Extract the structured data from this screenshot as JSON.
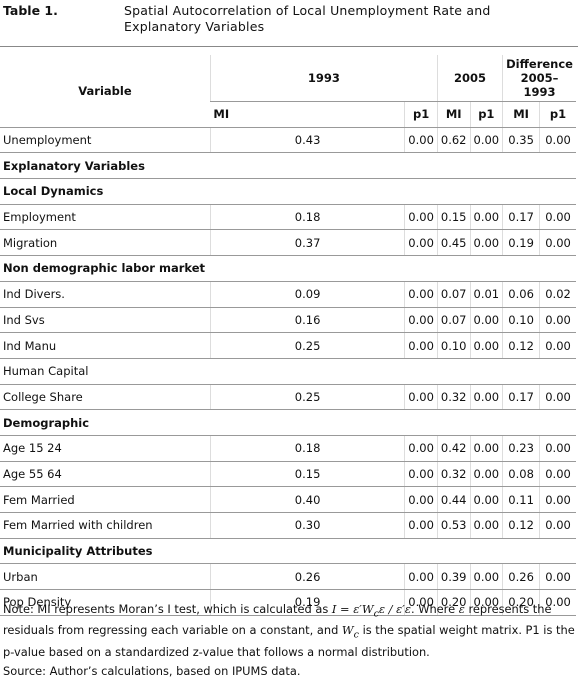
{
  "header": {
    "label": "Table 1.",
    "title": "Spatial Autocorrelation of Local Unemployment Rate and Explanatory Variables"
  },
  "table": {
    "columns": {
      "variable": "Variable",
      "groups": [
        "1993",
        "2005",
        "Difference 2005–1993"
      ],
      "sub": [
        "MI",
        "p1",
        "MI",
        "p1",
        "MI",
        "p1"
      ]
    },
    "rows": [
      {
        "label": "Unemployment",
        "values": [
          "0.43",
          "0.00",
          "0.62",
          "0.00",
          "0.35",
          "0.00"
        ]
      },
      {
        "section": "Explanatory Variables"
      },
      {
        "section": "Local Dynamics"
      },
      {
        "label": "Employment",
        "values": [
          "0.18",
          "0.00",
          "0.15",
          "0.00",
          "0.17",
          "0.00"
        ]
      },
      {
        "label": "Migration",
        "values": [
          "0.37",
          "0.00",
          "0.45",
          "0.00",
          "0.19",
          "0.00"
        ]
      },
      {
        "section": "Non demographic labor market"
      },
      {
        "label": "Ind Divers.",
        "values": [
          "0.09",
          "0.00",
          "0.07",
          "0.01",
          "0.06",
          "0.02"
        ]
      },
      {
        "label": "Ind Svs",
        "values": [
          "0.16",
          "0.00",
          "0.07",
          "0.00",
          "0.10",
          "0.00"
        ]
      },
      {
        "label": "Ind Manu",
        "values": [
          "0.25",
          "0.00",
          "0.10",
          "0.00",
          "0.12",
          "0.00"
        ]
      },
      {
        "label": "Human Capital"
      },
      {
        "label": "College Share",
        "values": [
          "0.25",
          "0.00",
          "0.32",
          "0.00",
          "0.17",
          "0.00"
        ]
      },
      {
        "section": "Demographic"
      },
      {
        "label": "Age 15 24",
        "values": [
          "0.18",
          "0.00",
          "0.42",
          "0.00",
          "0.23",
          "0.00"
        ]
      },
      {
        "label": "Age 55 64",
        "values": [
          "0.15",
          "0.00",
          "0.32",
          "0.00",
          "0.08",
          "0.00"
        ]
      },
      {
        "label": "Fem Married",
        "values": [
          "0.40",
          "0.00",
          "0.44",
          "0.00",
          "0.11",
          "0.00"
        ]
      },
      {
        "label": "Fem Married with children",
        "values": [
          "0.30",
          "0.00",
          "0.53",
          "0.00",
          "0.12",
          "0.00"
        ]
      },
      {
        "section": "Municipality Attributes"
      },
      {
        "label": "Urban",
        "values": [
          "0.26",
          "0.00",
          "0.39",
          "0.00",
          "0.26",
          "0.00"
        ]
      },
      {
        "label": "Pop Density",
        "values": [
          "0.19",
          "0.00",
          "0.20",
          "0.00",
          "0.20",
          "0.00"
        ]
      }
    ]
  },
  "note": [
    "Note: MI represents Moran’s I test, which is calculated as ",
    "I = ε′W",
    "c",
    "ε / ε′ε",
    ". Where ",
    "ε",
    " represents the residuals from regressing each variable on a constant, and ",
    "W",
    "c",
    " is the spatial weight matrix. P1 is the p-value based on a standardized z-value that follows a normal distribution."
  ],
  "source": "Source: Author’s calculations, based on IPUMS data."
}
